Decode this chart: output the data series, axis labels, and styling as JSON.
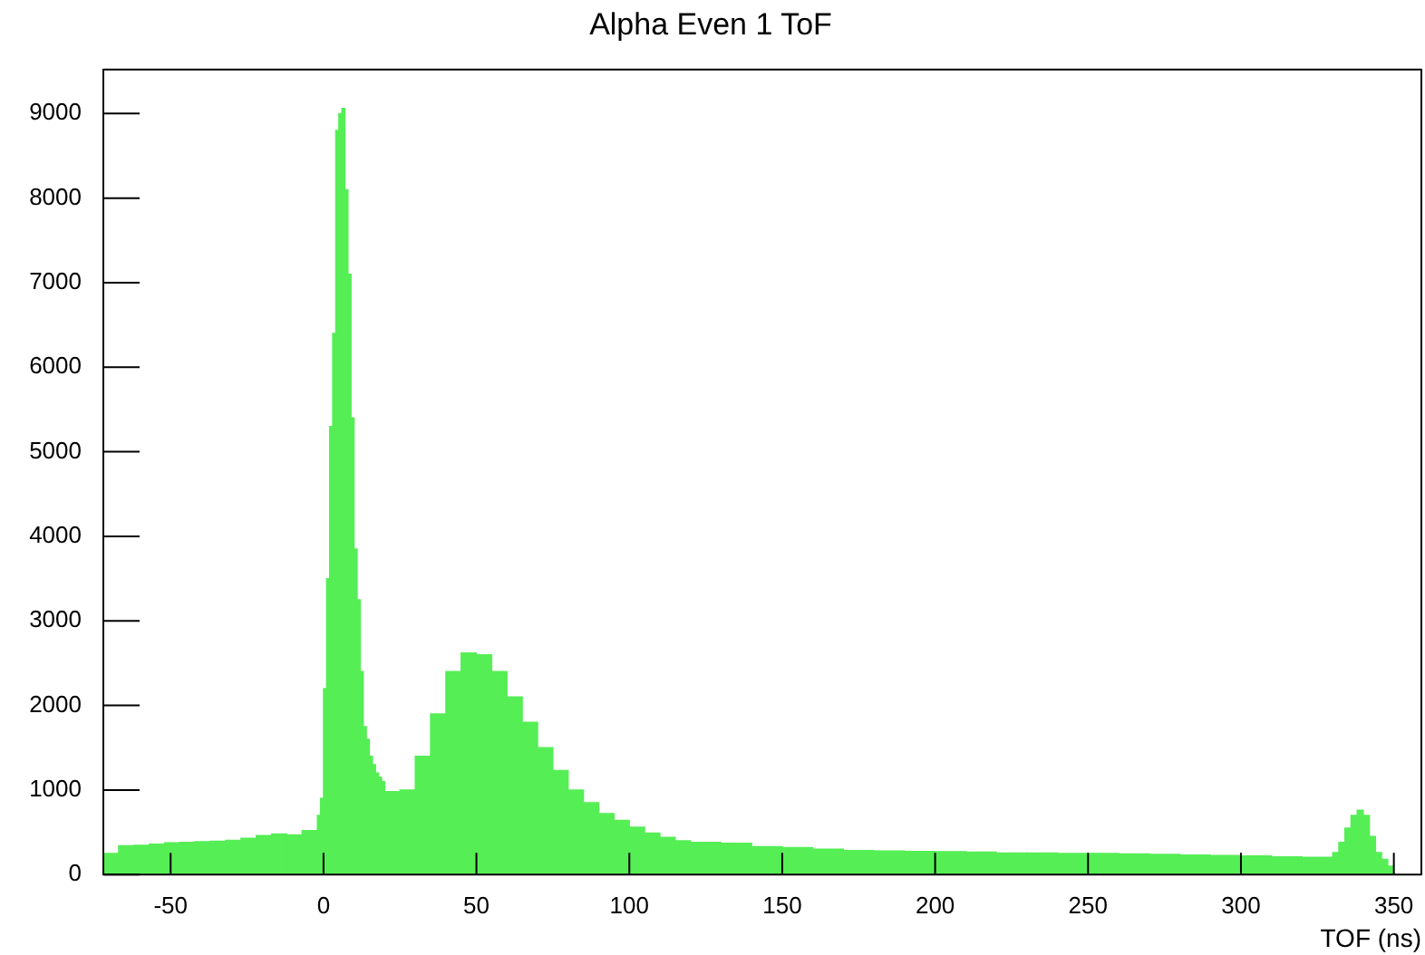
{
  "chart_data": {
    "type": "histogram",
    "title": "Alpha Even 1 ToF",
    "xlabel": "TOF (ns)",
    "color": "#55ee55",
    "bins": [
      -72,
      -67,
      -62,
      -57,
      -52,
      -47,
      -42,
      -37,
      -32,
      -27,
      -22,
      -17,
      -12,
      -7,
      -2,
      -1,
      0,
      1,
      2,
      3,
      4,
      5,
      6,
      7,
      8,
      9,
      10,
      11,
      12,
      13,
      14,
      15,
      16,
      17,
      18,
      19,
      20,
      25,
      30,
      35,
      40,
      45,
      50,
      55,
      60,
      65,
      70,
      75,
      80,
      85,
      90,
      95,
      100,
      105,
      110,
      115,
      120,
      130,
      140,
      150,
      160,
      170,
      180,
      190,
      200,
      210,
      220,
      230,
      240,
      250,
      260,
      270,
      280,
      290,
      300,
      310,
      320,
      330,
      332,
      334,
      336,
      338,
      340,
      342,
      344,
      346,
      348,
      350
    ],
    "values": [
      250,
      340,
      345,
      360,
      375,
      380,
      390,
      395,
      405,
      430,
      460,
      480,
      470,
      520,
      700,
      900,
      2200,
      3500,
      5300,
      6400,
      8800,
      9000,
      9060,
      8100,
      7100,
      5400,
      3850,
      3250,
      2400,
      1750,
      1600,
      1400,
      1300,
      1200,
      1150,
      1100,
      980,
      1000,
      1400,
      1900,
      2400,
      2620,
      2600,
      2400,
      2100,
      1800,
      1500,
      1230,
      1000,
      850,
      720,
      640,
      560,
      490,
      440,
      400,
      380,
      370,
      330,
      320,
      300,
      285,
      280,
      275,
      270,
      265,
      255,
      255,
      250,
      250,
      245,
      240,
      230,
      225,
      220,
      210,
      205,
      260,
      380,
      550,
      700,
      760,
      700,
      450,
      260,
      180,
      100
    ],
    "xlim": [
      -72,
      359
    ],
    "ylim": [
      0,
      9520
    ],
    "xticks": [
      -50,
      0,
      50,
      100,
      150,
      200,
      250,
      300,
      350
    ],
    "yticks": [
      0,
      1000,
      2000,
      3000,
      4000,
      5000,
      6000,
      7000,
      8000,
      9000
    ],
    "legend": false
  }
}
